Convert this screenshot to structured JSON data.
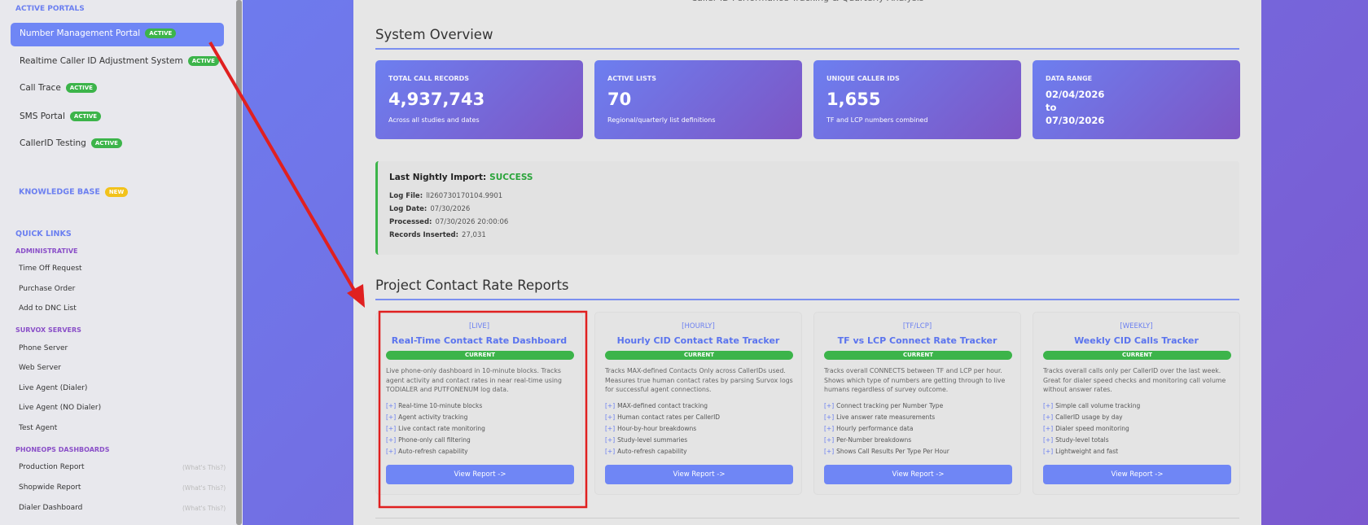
{
  "sidebar": {
    "portals_heading": "ACTIVE PORTALS",
    "portals": [
      {
        "label": "Number Management Portal",
        "badge": "ACTIVE"
      },
      {
        "label": "Realtime Caller ID Adjustment System",
        "badge": "ACTIVE"
      },
      {
        "label": "Call Trace",
        "badge": "ACTIVE"
      },
      {
        "label": "SMS Portal",
        "badge": "ACTIVE"
      },
      {
        "label": "CallerID Testing",
        "badge": "ACTIVE"
      }
    ],
    "knowledge_base": {
      "label": "KNOWLEDGE BASE",
      "badge": "NEW"
    },
    "quick_links_heading": "QUICK LINKS",
    "groups": [
      {
        "heading": "ADMINISTRATIVE",
        "items": [
          "Time Off Request",
          "Purchase Order",
          "Add to DNC List"
        ]
      },
      {
        "heading": "SURVOX SERVERS",
        "items": [
          "Phone Server",
          "Web Server",
          "Live Agent (Dialer)",
          "Live Agent (NO Dialer)",
          "Test Agent"
        ]
      },
      {
        "heading": "PHONEOPS DASHBOARDS",
        "items": [
          "Production Report",
          "Shopwide Report",
          "Dialer Dashboard"
        ],
        "hint": "(What's This?)"
      }
    ]
  },
  "header": {
    "subtitle": "Caller ID Performance Tracking & Quarterly Analysis"
  },
  "overview": {
    "title": "System Overview",
    "cards": [
      {
        "label": "TOTAL CALL RECORDS",
        "value": "4,937,743",
        "note": "Across all studies and dates"
      },
      {
        "label": "ACTIVE LISTS",
        "value": "70",
        "note": "Regional/quarterly list definitions"
      },
      {
        "label": "UNIQUE CALLER IDS",
        "value": "1,655",
        "note": "TF and LCP numbers combined"
      },
      {
        "label": "DATA RANGE",
        "lines": [
          "02/04/2026",
          "to",
          "07/30/2026"
        ]
      }
    ]
  },
  "import": {
    "title": "Last Nightly Import:",
    "status": "SUCCESS",
    "fields": [
      {
        "label": "Log File:",
        "value": "lI260730170104.9901"
      },
      {
        "label": "Log Date:",
        "value": "07/30/2026"
      },
      {
        "label": "Processed:",
        "value": "07/30/2026 20:00:06"
      },
      {
        "label": "Records Inserted:",
        "value": "27,031"
      }
    ]
  },
  "reports": {
    "title": "Project Contact Rate Reports",
    "bullet": "[+]",
    "cards": [
      {
        "tag": "[LIVE]",
        "title": "Real-Time Contact Rate Dashboard",
        "badge": "CURRENT",
        "description": "Live phone-only dashboard in 10-minute blocks. Tracks agent activity and contact rates in near real-time using TODIALER and PUTFONENUM log data.",
        "features": [
          "Real-time 10-minute blocks",
          "Agent activity tracking",
          "Live contact rate monitoring",
          "Phone-only call filtering",
          "Auto-refresh capability"
        ],
        "button": "View Report ->"
      },
      {
        "tag": "[HOURLY]",
        "title": "Hourly CID Contact Rate Tracker",
        "badge": "CURRENT",
        "description": "Tracks MAX-defined Contacts Only across CallerIDs used. Measures true human contact rates by parsing Survox logs for successful agent connections.",
        "features": [
          "MAX-defined contact tracking",
          "Human contact rates per CallerID",
          "Hour-by-hour breakdowns",
          "Study-level summaries",
          "Auto-refresh capability"
        ],
        "button": "View Report ->"
      },
      {
        "tag": "[TF/LCP]",
        "title": "TF vs LCP Connect Rate Tracker",
        "badge": "CURRENT",
        "description": "Tracks overall CONNECTS between TF and LCP per hour. Shows which type of numbers are getting through to live humans regardless of survey outcome.",
        "features": [
          "Connect tracking per Number Type",
          "Live answer rate measurements",
          "Hourly performance data",
          "Per-Number breakdowns",
          "Shows Call Results Per Type Per Hour"
        ],
        "button": "View Report ->"
      },
      {
        "tag": "[WEEKLY]",
        "title": "Weekly CID Calls Tracker",
        "badge": "CURRENT",
        "description": "Tracks overall calls only per CallerID over the last week. Great for dialer speed checks and monitoring call volume without answer rates.",
        "features": [
          "Simple call volume tracking",
          "CallerID usage by day",
          "Dialer speed monitoring",
          "Study-level totals",
          "Lightweight and fast"
        ],
        "button": "View Report ->"
      }
    ]
  }
}
